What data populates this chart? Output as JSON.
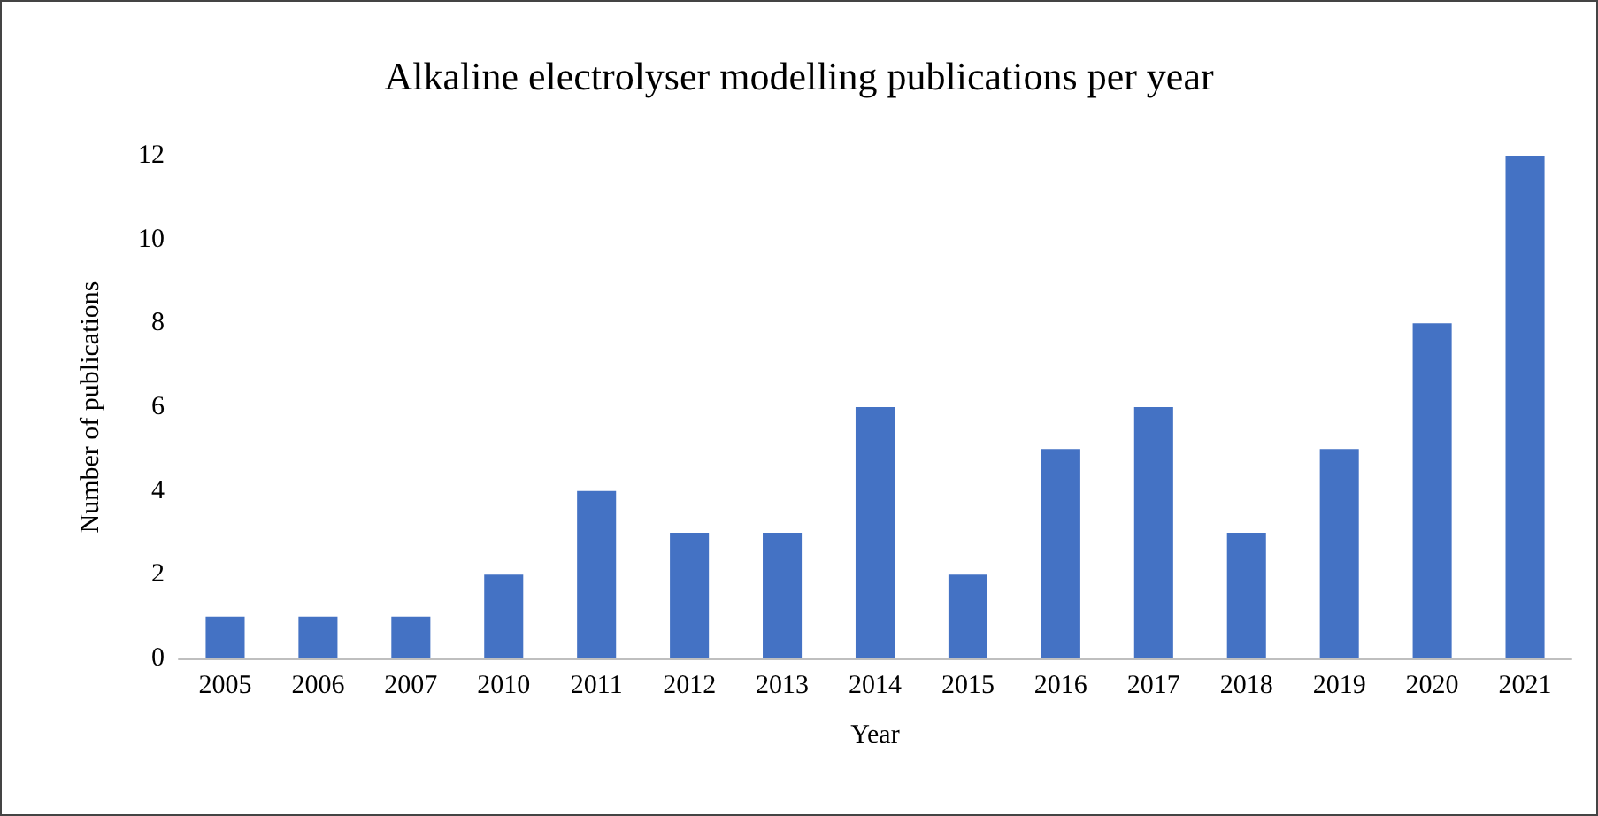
{
  "chart_data": {
    "type": "bar",
    "title": "Alkaline electrolyser modelling publications per year",
    "xlabel": "Year",
    "ylabel": "Number of publications",
    "categories": [
      "2005",
      "2006",
      "2007",
      "2010",
      "2011",
      "2012",
      "2013",
      "2014",
      "2015",
      "2016",
      "2017",
      "2018",
      "2019",
      "2020",
      "2021"
    ],
    "values": [
      1,
      1,
      1,
      2,
      4,
      3,
      3,
      6,
      2,
      5,
      6,
      3,
      5,
      8,
      12
    ],
    "color": "#4472c4",
    "ylim": [
      0,
      12
    ],
    "yticks": [
      0,
      2,
      4,
      6,
      8,
      10,
      12
    ],
    "grid": false
  }
}
